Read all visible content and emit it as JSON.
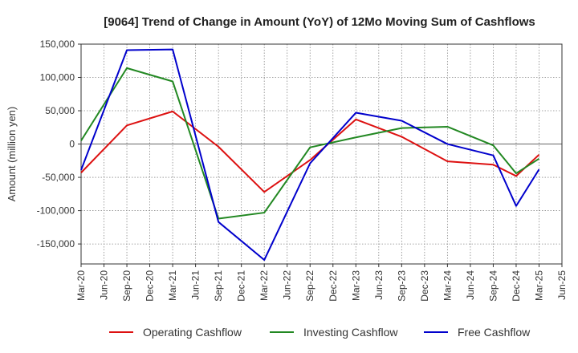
{
  "chart_data": {
    "type": "line",
    "title": "[9064]  Trend of Change in Amount (YoY) of 12Mo Moving Sum of Cashflows",
    "xlabel": "",
    "ylabel": "Amount (million yen)",
    "ylim": [
      -180000,
      150000
    ],
    "yticks": [
      150000,
      100000,
      50000,
      0,
      -50000,
      -100000,
      -150000
    ],
    "ytick_labels": [
      "150,000",
      "100,000",
      "50,000",
      "0",
      "-50,000",
      "-100,000",
      "-150,000"
    ],
    "categories": [
      "Mar-20",
      "Jun-20",
      "Sep-20",
      "Dec-20",
      "Mar-21",
      "Jun-21",
      "Sep-21",
      "Dec-21",
      "Mar-22",
      "Jun-22",
      "Sep-22",
      "Dec-22",
      "Mar-23",
      "Jun-23",
      "Sep-23",
      "Dec-23",
      "Mar-24",
      "Jun-24",
      "Sep-24",
      "Dec-24",
      "Mar-25",
      "Jun-25"
    ],
    "grid": true,
    "legend_position": "bottom",
    "series": [
      {
        "name": "Operating Cashflow",
        "color": "#dd1111",
        "values": [
          -43000,
          null,
          28000,
          null,
          49000,
          null,
          -4000,
          null,
          -72000,
          null,
          -24000,
          null,
          37000,
          null,
          11000,
          null,
          -26000,
          null,
          -31000,
          -48000,
          -16000,
          null
        ]
      },
      {
        "name": "Investing Cashflow",
        "color": "#228822",
        "values": [
          5000,
          null,
          114000,
          null,
          94000,
          null,
          -112000,
          null,
          -103000,
          null,
          -5000,
          null,
          10000,
          null,
          24000,
          null,
          26000,
          null,
          -2000,
          -44000,
          -22000,
          null
        ]
      },
      {
        "name": "Free Cashflow",
        "color": "#0000cc",
        "values": [
          -39000,
          null,
          141000,
          null,
          142000,
          null,
          -117000,
          null,
          -174000,
          null,
          -29000,
          null,
          47000,
          null,
          35000,
          null,
          0,
          null,
          -17000,
          -93000,
          -38000,
          null
        ]
      }
    ]
  }
}
